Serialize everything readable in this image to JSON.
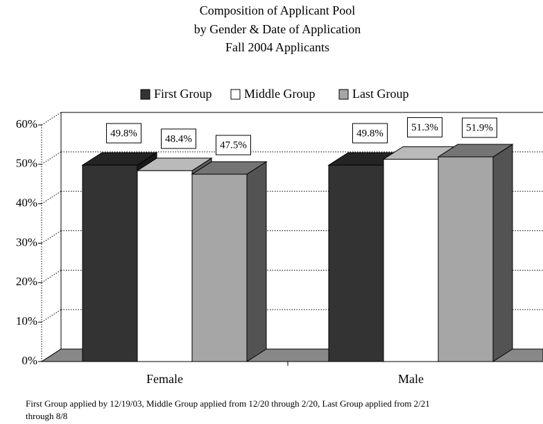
{
  "chart_data": {
    "type": "bar3d",
    "title": [
      "Composition of Applicant Pool",
      "by Gender & Date of Application",
      "Fall 2004 Applicants"
    ],
    "categories": [
      "Female",
      "Male"
    ],
    "series": [
      {
        "name": "First Group",
        "color": "#333333",
        "values": [
          49.8,
          49.8
        ],
        "value_labels": [
          "49.8%",
          "49.8%"
        ]
      },
      {
        "name": "Middle Group",
        "color": "#ffffff",
        "values": [
          48.4,
          51.3
        ],
        "value_labels": [
          "48.4%",
          "51.3%"
        ]
      },
      {
        "name": "Last Group",
        "color": "#a6a6a6",
        "values": [
          47.5,
          51.9
        ],
        "value_labels": [
          "47.5%",
          "51.9%"
        ]
      }
    ],
    "ylim": [
      0,
      60
    ],
    "yticks": [
      {
        "value": 0,
        "label": "0%"
      },
      {
        "value": 10,
        "label": "10%"
      },
      {
        "value": 20,
        "label": "20%"
      },
      {
        "value": 30,
        "label": "30%"
      },
      {
        "value": 40,
        "label": "40%"
      },
      {
        "value": 50,
        "label": "50%"
      },
      {
        "value": 60,
        "label": "60%"
      }
    ],
    "grid": true,
    "legend": "top",
    "footnote": [
      "First Group applied by 12/19/03, Middle Group applied from 12/20 through 2/20, Last Group applied from 2/21",
      "through 8/8"
    ]
  }
}
